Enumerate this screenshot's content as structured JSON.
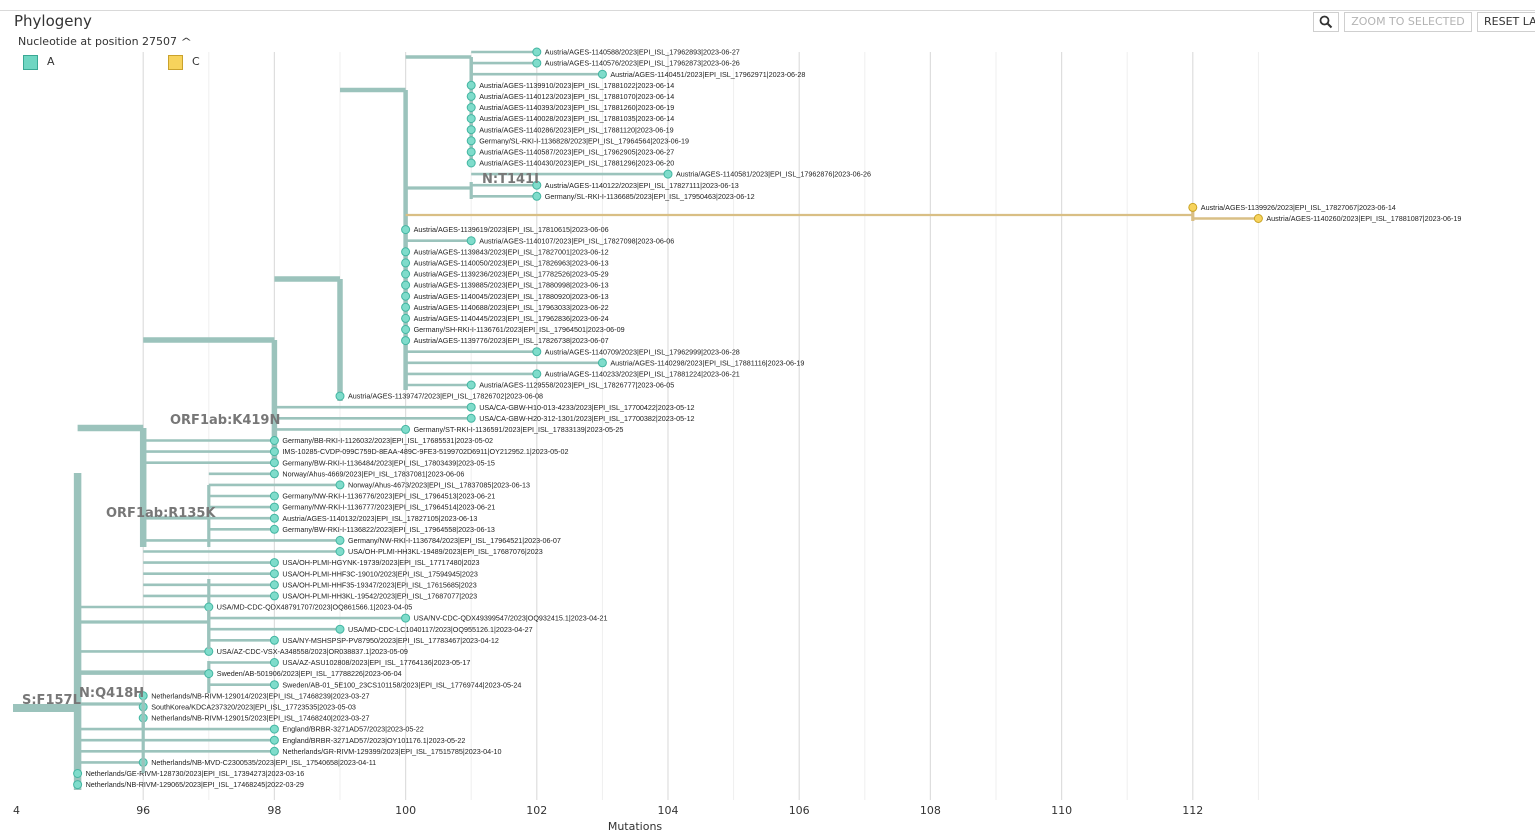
{
  "panel": {
    "title": "Phylogeny",
    "legend_title": "Nucleotide at position 27507",
    "legend_caret_icon": "chevron-up-icon",
    "legend": [
      {
        "label": "A",
        "color": "#6fd6c2"
      },
      {
        "label": "C",
        "color": "#f7d35c"
      }
    ]
  },
  "toolbar": {
    "zoom_icon": "magnifier-icon",
    "zoom_to_selected_label": "ZOOM TO SELECTED",
    "reset_label": "RESET LA"
  },
  "colors": {
    "branch": "#9bc3bc",
    "branch_c": "#d9bf85",
    "tip_a_fill": "#7fdccb",
    "tip_a_stroke": "#43b5a1",
    "tip_c_fill": "#f7d35c",
    "tip_c_stroke": "#c9a325",
    "grid": "#e4e4e4"
  },
  "chart_data": {
    "type": "tree",
    "xlabel": "Mutations",
    "x_ticks": [
      "4",
      "96",
      "98",
      "100",
      "102",
      "104",
      "106",
      "108",
      "110",
      "112"
    ],
    "branch_labels": [
      "S:F157L",
      "N:Q418H",
      "ORF1ab:R135K",
      "ORF1ab:K419N",
      "N:T141I"
    ],
    "tips": [
      {
        "name": "Austria/AGES-1140588/2023|EPI_ISL_17962893|2023-06-27",
        "mutations": 102,
        "allele": "A"
      },
      {
        "name": "Austria/AGES-1140576/2023|EPI_ISL_17962873|2023-06-26",
        "mutations": 102,
        "allele": "A"
      },
      {
        "name": "Austria/AGES-1140451/2023|EPI_ISL_17962971|2023-06-28",
        "mutations": 103,
        "allele": "A"
      },
      {
        "name": "Austria/AGES-1139910/2023|EPI_ISL_17881022|2023-06-14",
        "mutations": 101,
        "allele": "A"
      },
      {
        "name": "Austria/AGES-1140123/2023|EPI_ISL_17881070|2023-06-14",
        "mutations": 101,
        "allele": "A"
      },
      {
        "name": "Austria/AGES-1140393/2023|EPI_ISL_17881260|2023-06-19",
        "mutations": 101,
        "allele": "A"
      },
      {
        "name": "Austria/AGES-1140028/2023|EPI_ISL_17881035|2023-06-14",
        "mutations": 101,
        "allele": "A"
      },
      {
        "name": "Austria/AGES-1140286/2023|EPI_ISL_17881120|2023-06-19",
        "mutations": 101,
        "allele": "A"
      },
      {
        "name": "Germany/SL-RKI-I-1136828/2023|EPI_ISL_17964564|2023-06-19",
        "mutations": 101,
        "allele": "A"
      },
      {
        "name": "Austria/AGES-1140587/2023|EPI_ISL_17962905|2023-06-27",
        "mutations": 101,
        "allele": "A"
      },
      {
        "name": "Austria/AGES-1140430/2023|EPI_ISL_17881296|2023-06-20",
        "mutations": 101,
        "allele": "A"
      },
      {
        "name": "Austria/AGES-1140581/2023|EPI_ISL_17962876|2023-06-26",
        "mutations": 104,
        "allele": "A"
      },
      {
        "name": "Austria/AGES-1140122/2023|EPI_ISL_17827111|2023-06-13",
        "mutations": 102,
        "allele": "A"
      },
      {
        "name": "Germany/SL-RKI-I-1136685/2023|EPI_ISL_17950463|2023-06-12",
        "mutations": 102,
        "allele": "A"
      },
      {
        "name": "Austria/AGES-1139926/2023|EPI_ISL_17827067|2023-06-14",
        "mutations": 112,
        "allele": "C"
      },
      {
        "name": "Austria/AGES-1140260/2023|EPI_ISL_17881087|2023-06-19",
        "mutations": 113,
        "allele": "C"
      },
      {
        "name": "Austria/AGES-1139619/2023|EPI_ISL_17810615|2023-06-06",
        "mutations": 100,
        "allele": "A"
      },
      {
        "name": "Austria/AGES-1140107/2023|EPI_ISL_17827098|2023-06-06",
        "mutations": 101,
        "allele": "A"
      },
      {
        "name": "Austria/AGES-1139843/2023|EPI_ISL_17827001|2023-06-12",
        "mutations": 100,
        "allele": "A"
      },
      {
        "name": "Austria/AGES-1140050/2023|EPI_ISL_17826963|2023-06-13",
        "mutations": 100,
        "allele": "A"
      },
      {
        "name": "Austria/AGES-1139236/2023|EPI_ISL_17782526|2023-05-29",
        "mutations": 100,
        "allele": "A"
      },
      {
        "name": "Austria/AGES-1139885/2023|EPI_ISL_17880998|2023-06-13",
        "mutations": 100,
        "allele": "A"
      },
      {
        "name": "Austria/AGES-1140045/2023|EPI_ISL_17880920|2023-06-13",
        "mutations": 100,
        "allele": "A"
      },
      {
        "name": "Austria/AGES-1140688/2023|EPI_ISL_17963033|2023-06-22",
        "mutations": 100,
        "allele": "A"
      },
      {
        "name": "Austria/AGES-1140445/2023|EPI_ISL_17962836|2023-06-24",
        "mutations": 100,
        "allele": "A"
      },
      {
        "name": "Germany/SH-RKI-I-1136761/2023|EPI_ISL_17964501|2023-06-09",
        "mutations": 100,
        "allele": "A"
      },
      {
        "name": "Austria/AGES-1139776/2023|EPI_ISL_17826738|2023-06-07",
        "mutations": 100,
        "allele": "A"
      },
      {
        "name": "Austria/AGES-1140709/2023|EPI_ISL_17962999|2023-06-28",
        "mutations": 102,
        "allele": "A"
      },
      {
        "name": "Austria/AGES-1140298/2023|EPI_ISL_17881116|2023-06-19",
        "mutations": 103,
        "allele": "A"
      },
      {
        "name": "Austria/AGES-1140233/2023|EPI_ISL_17881224|2023-06-21",
        "mutations": 102,
        "allele": "A"
      },
      {
        "name": "Austria/AGES-1129558/2023|EPI_ISL_17826777|2023-06-05",
        "mutations": 101,
        "allele": "A"
      },
      {
        "name": "Austria/AGES-1139747/2023|EPI_ISL_17826702|2023-06-08",
        "mutations": 99,
        "allele": "A"
      },
      {
        "name": "USA/CA-GBW-H10-013-4233/2023|EPI_ISL_17700422|2023-05-12",
        "mutations": 101,
        "allele": "A"
      },
      {
        "name": "USA/CA-GBW-H20-312-1301/2023|EPI_ISL_17700382|2023-05-12",
        "mutations": 101,
        "allele": "A"
      },
      {
        "name": "Germany/ST-RKI-I-1136591/2023|EPI_ISL_17833139|2023-05-25",
        "mutations": 100,
        "allele": "A"
      },
      {
        "name": "Germany/BB-RKI-I-1126032/2023|EPI_ISL_17685531|2023-05-02",
        "mutations": 98,
        "allele": "A"
      },
      {
        "name": "IMS-10285-CVDP-099C759D-8EAA-489C-9FE3-5199702D6911|OY212952.1|2023-05-02",
        "mutations": 98,
        "allele": "A"
      },
      {
        "name": "Germany/BW-RKI-I-1136484/2023|EPI_ISL_17803439|2023-05-15",
        "mutations": 98,
        "allele": "A"
      },
      {
        "name": "Norway/Ahus-4669/2023|EPI_ISL_17837081|2023-06-06",
        "mutations": 98,
        "allele": "A"
      },
      {
        "name": "Norway/Ahus-4673/2023|EPI_ISL_17837085|2023-06-13",
        "mutations": 99,
        "allele": "A"
      },
      {
        "name": "Germany/NW-RKI-I-1136776/2023|EPI_ISL_17964513|2023-06-21",
        "mutations": 98,
        "allele": "A"
      },
      {
        "name": "Germany/NW-RKI-I-1136777/2023|EPI_ISL_17964514|2023-06-21",
        "mutations": 98,
        "allele": "A"
      },
      {
        "name": "Austria/AGES-1140132/2023|EPI_ISL_17827105|2023-06-13",
        "mutations": 98,
        "allele": "A"
      },
      {
        "name": "Germany/BW-RKI-I-1136822/2023|EPI_ISL_17964558|2023-06-13",
        "mutations": 98,
        "allele": "A"
      },
      {
        "name": "Germany/NW-RKI-I-1136784/2023|EPI_ISL_17964521|2023-06-07",
        "mutations": 99,
        "allele": "A"
      },
      {
        "name": "USA/OH-PLMI-HH3KL-19489/2023|EPI_ISL_17687076|2023",
        "mutations": 99,
        "allele": "A"
      },
      {
        "name": "USA/OH-PLMI-HGYNK-19739/2023|EPI_ISL_17717480|2023",
        "mutations": 98,
        "allele": "A"
      },
      {
        "name": "USA/OH-PLMI-HHF3C-19010/2023|EPI_ISL_17594945|2023",
        "mutations": 98,
        "allele": "A"
      },
      {
        "name": "USA/OH-PLMI-HHF35-19347/2023|EPI_ISL_17615685|2023",
        "mutations": 98,
        "allele": "A"
      },
      {
        "name": "USA/OH-PLMI-HH3KL-19542/2023|EPI_ISL_17687077|2023",
        "mutations": 98,
        "allele": "A"
      },
      {
        "name": "USA/MD-CDC-QDX48791707/2023|OQ861566.1|2023-04-05",
        "mutations": 97,
        "allele": "A"
      },
      {
        "name": "USA/NV-CDC-QDX49399547/2023|OQ932415.1|2023-04-21",
        "mutations": 100,
        "allele": "A"
      },
      {
        "name": "USA/MD-CDC-LC1040117/2023|OQ955126.1|2023-04-27",
        "mutations": 99,
        "allele": "A"
      },
      {
        "name": "USA/NY-MSHSPSP-PV87950/2023|EPI_ISL_17783467|2023-04-12",
        "mutations": 98,
        "allele": "A"
      },
      {
        "name": "USA/AZ-CDC-VSX-A348558/2023|OR038837.1|2023-05-09",
        "mutations": 97,
        "allele": "A"
      },
      {
        "name": "USA/AZ-ASU102808/2023|EPI_ISL_17764136|2023-05-17",
        "mutations": 98,
        "allele": "A"
      },
      {
        "name": "Sweden/AB-501906/2023|EPI_ISL_17788226|2023-06-04",
        "mutations": 97,
        "allele": "A"
      },
      {
        "name": "Sweden/AB-01_5E100_23CS101158/2023|EPI_ISL_17769744|2023-05-24",
        "mutations": 98,
        "allele": "A"
      },
      {
        "name": "Netherlands/NB-RIVM-129014/2023|EPI_ISL_17468239|2023-03-27",
        "mutations": 96,
        "allele": "A"
      },
      {
        "name": "SouthKorea/KDCA237320/2023|EPI_ISL_17723535|2023-05-03",
        "mutations": 96,
        "allele": "A"
      },
      {
        "name": "Netherlands/NB-RIVM-129015/2023|EPI_ISL_17468240|2023-03-27",
        "mutations": 96,
        "allele": "A"
      },
      {
        "name": "England/BRBR-3271AD57/2023|2023-05-22",
        "mutations": 98,
        "allele": "A"
      },
      {
        "name": "England/BRBR-3271AD57/2023|OY101176.1|2023-05-22",
        "mutations": 98,
        "allele": "A"
      },
      {
        "name": "Netherlands/GR-RIVM-129399/2023|EPI_ISL_17515785|2023-04-10",
        "mutations": 98,
        "allele": "A"
      },
      {
        "name": "Netherlands/NB-MVD-C2300535/2023|EPI_ISL_17540658|2023-04-11",
        "mutations": 96,
        "allele": "A"
      },
      {
        "name": "Netherlands/GE-RIVM-128730/2023|EPI_ISL_17394273|2023-03-16",
        "mutations": 95,
        "allele": "A"
      },
      {
        "name": "Netherlands/NB-RIVM-129065/2023|EPI_ISL_17468245|2022-03-29",
        "mutations": 95,
        "allele": "A"
      }
    ]
  }
}
